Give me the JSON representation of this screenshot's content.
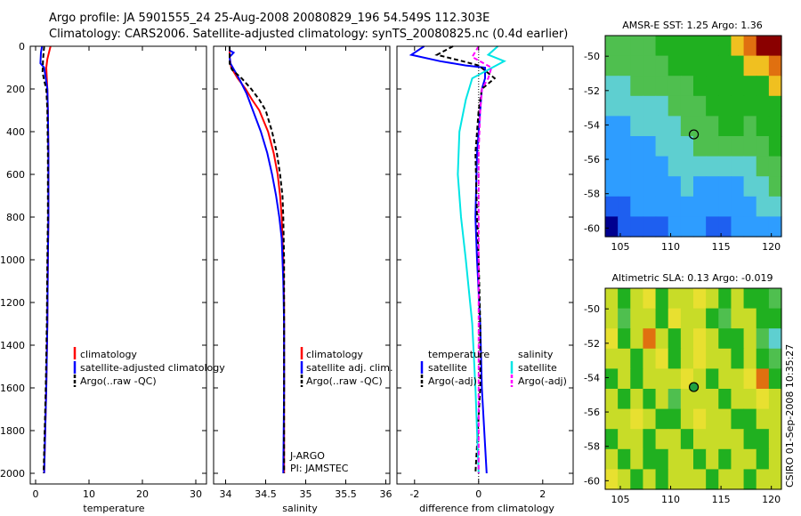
{
  "figure": {
    "title_line1": "Argo profile: JA 5901555_24 25-Aug-2008 20080829_196 54.549S 112.303E",
    "title_line2": "Climatology: CARS2006. Satellite-adjusted climatology: synTS_20080825.nc (0.4d earlier)",
    "credit": "CSIRO 01-Sep-2008 10:35:27",
    "colors": {
      "climatology": "#ff0000",
      "satellite": "#0000ff",
      "argo": "#000000",
      "salinity": "#00e5e5",
      "salinity_adj": "#ff00ff"
    }
  },
  "chart_data": [
    {
      "type": "line",
      "id": "temperature",
      "xlabel": "temperature",
      "ylabel": "",
      "xlim": [
        -1,
        32
      ],
      "ylim": [
        2050,
        0
      ],
      "xticks": [
        "0",
        "10",
        "20",
        "30"
      ],
      "yticks": [
        "0",
        "200",
        "400",
        "600",
        "800",
        "1000",
        "1200",
        "1400",
        "1600",
        "1800",
        "2000"
      ],
      "legend": [
        "climatology",
        "satellite-adjusted climatology",
        "Argo(..raw -QC)"
      ],
      "series": [
        {
          "name": "climatology",
          "color": "#ff0000",
          "dash": "",
          "points": [
            [
              2.8,
              0
            ],
            [
              2.6,
              20
            ],
            [
              2.2,
              60
            ],
            [
              2.0,
              100
            ],
            [
              2.1,
              150
            ],
            [
              2.2,
              200
            ],
            [
              2.3,
              300
            ],
            [
              2.4,
              500
            ],
            [
              2.4,
              800
            ],
            [
              2.3,
              1000
            ],
            [
              2.2,
              1300
            ],
            [
              2.0,
              1600
            ],
            [
              1.7,
              1900
            ],
            [
              1.6,
              2000
            ]
          ]
        },
        {
          "name": "satellite-adjusted climatology",
          "color": "#0000ff",
          "dash": "",
          "points": [
            [
              1.2,
              0
            ],
            [
              1.0,
              30
            ],
            [
              0.9,
              80
            ],
            [
              1.6,
              100
            ],
            [
              1.9,
              150
            ],
            [
              2.2,
              200
            ],
            [
              2.3,
              300
            ],
            [
              2.4,
              500
            ],
            [
              2.4,
              800
            ],
            [
              2.3,
              1000
            ],
            [
              2.2,
              1300
            ],
            [
              2.0,
              1600
            ],
            [
              1.7,
              1900
            ],
            [
              1.6,
              2000
            ]
          ]
        },
        {
          "name": "Argo(..raw -QC)",
          "color": "#000000",
          "dash": "5,3",
          "points": [
            [
              1.6,
              0
            ],
            [
              1.4,
              60
            ],
            [
              1.3,
              120
            ],
            [
              1.6,
              160
            ],
            [
              2.0,
              200
            ],
            [
              2.2,
              300
            ],
            [
              2.3,
              500
            ],
            [
              2.3,
              800
            ],
            [
              2.2,
              1000
            ],
            [
              2.1,
              1300
            ],
            [
              1.9,
              1600
            ],
            [
              1.6,
              1900
            ],
            [
              1.5,
              2000
            ]
          ]
        }
      ]
    },
    {
      "type": "line",
      "id": "salinity",
      "xlabel": "salinity",
      "ylabel": "",
      "xlim": [
        33.85,
        36.05
      ],
      "ylim": [
        2050,
        0
      ],
      "xticks": [
        "34",
        "34.5",
        "35",
        "35.5",
        "36"
      ],
      "legend": [
        "climatology",
        "satellite adj. clim.",
        "Argo(..raw -QC)"
      ],
      "annotation": [
        "J-ARGO",
        "PI: JAMSTEC"
      ],
      "series": [
        {
          "name": "climatology",
          "color": "#ff0000",
          "dash": "",
          "points": [
            [
              34.05,
              0
            ],
            [
              34.05,
              50
            ],
            [
              34.07,
              100
            ],
            [
              34.15,
              150
            ],
            [
              34.25,
              200
            ],
            [
              34.33,
              250
            ],
            [
              34.42,
              300
            ],
            [
              34.53,
              400
            ],
            [
              34.6,
              500
            ],
            [
              34.65,
              600
            ],
            [
              34.68,
              700
            ],
            [
              34.7,
              800
            ],
            [
              34.72,
              1000
            ],
            [
              34.73,
              1200
            ],
            [
              34.73,
              1500
            ],
            [
              34.73,
              1800
            ],
            [
              34.73,
              2000
            ]
          ]
        },
        {
          "name": "satellite adj. clim.",
          "color": "#0000ff",
          "dash": "",
          "points": [
            [
              34.05,
              0
            ],
            [
              34.05,
              20
            ],
            [
              34.1,
              30
            ],
            [
              34.05,
              50
            ],
            [
              34.06,
              80
            ],
            [
              34.12,
              120
            ],
            [
              34.18,
              160
            ],
            [
              34.26,
              220
            ],
            [
              34.34,
              300
            ],
            [
              34.44,
              400
            ],
            [
              34.52,
              500
            ],
            [
              34.58,
              600
            ],
            [
              34.63,
              700
            ],
            [
              34.67,
              800
            ],
            [
              34.7,
              900
            ],
            [
              34.72,
              1100
            ],
            [
              34.73,
              1300
            ],
            [
              34.73,
              1600
            ],
            [
              34.72,
              2000
            ]
          ]
        },
        {
          "name": "Argo(..raw -QC)",
          "color": "#000000",
          "dash": "5,3",
          "points": [
            [
              34.05,
              0
            ],
            [
              34.05,
              80
            ],
            [
              34.08,
              110
            ],
            [
              34.2,
              150
            ],
            [
              34.32,
              200
            ],
            [
              34.42,
              250
            ],
            [
              34.5,
              300
            ],
            [
              34.58,
              400
            ],
            [
              34.64,
              500
            ],
            [
              34.68,
              600
            ],
            [
              34.71,
              700
            ],
            [
              34.72,
              800
            ],
            [
              34.73,
              1000
            ],
            [
              34.73,
              1500
            ],
            [
              34.73,
              2000
            ]
          ]
        }
      ]
    },
    {
      "type": "line",
      "id": "difference",
      "xlabel": "difference from climatology",
      "ylabel": "",
      "xlim": [
        -2.55,
        2.95
      ],
      "ylim": [
        2050,
        0
      ],
      "xticks": [
        "-2",
        "0",
        "2"
      ],
      "legend_left_header": "temperature",
      "legend_right_header": "salinity",
      "legend": [
        "satellite",
        "Argo(-adj)",
        "satellite",
        "Argo(-adj)"
      ],
      "series": [
        {
          "name": "satellite (temperature)",
          "color": "#0000ff",
          "dash": "",
          "points": [
            [
              -1.7,
              0
            ],
            [
              -2.1,
              40
            ],
            [
              -1.2,
              70
            ],
            [
              -0.4,
              90
            ],
            [
              0.2,
              100
            ],
            [
              0.2,
              150
            ],
            [
              0.1,
              200
            ],
            [
              0.05,
              300
            ],
            [
              -0.05,
              500
            ],
            [
              -0.1,
              800
            ],
            [
              -0.05,
              1000
            ],
            [
              0.05,
              1300
            ],
            [
              0.1,
              1600
            ],
            [
              0.25,
              2000
            ]
          ]
        },
        {
          "name": "Argo(-adj) (temperature)",
          "color": "#000000",
          "dash": "5,3",
          "points": [
            [
              -0.8,
              0
            ],
            [
              -1.3,
              40
            ],
            [
              -0.5,
              70
            ],
            [
              0.0,
              90
            ],
            [
              0.5,
              150
            ],
            [
              0.1,
              200
            ],
            [
              0.0,
              300
            ],
            [
              -0.1,
              500
            ],
            [
              -0.05,
              800
            ],
            [
              0.0,
              1000
            ],
            [
              0.05,
              1300
            ],
            [
              0.05,
              1600
            ],
            [
              -0.1,
              2000
            ]
          ]
        },
        {
          "name": "satellite (salinity)",
          "color": "#00e5e5",
          "dash": "",
          "points": [
            [
              0.6,
              0
            ],
            [
              0.3,
              40
            ],
            [
              0.8,
              70
            ],
            [
              -0.2,
              150
            ],
            [
              -0.4,
              250
            ],
            [
              -0.6,
              400
            ],
            [
              -0.65,
              600
            ],
            [
              -0.55,
              800
            ],
            [
              -0.4,
              1000
            ],
            [
              -0.2,
              1300
            ],
            [
              -0.1,
              1600
            ],
            [
              0.0,
              2000
            ]
          ]
        },
        {
          "name": "Argo(-adj) (salinity)",
          "color": "#ff00ff",
          "dash": "5,3",
          "points": [
            [
              0.0,
              0
            ],
            [
              -0.2,
              50
            ],
            [
              0.4,
              100
            ],
            [
              0.3,
              150
            ],
            [
              0.1,
              200
            ],
            [
              0.05,
              300
            ],
            [
              0.0,
              500
            ],
            [
              0.0,
              800
            ],
            [
              0.0,
              1200
            ],
            [
              0.0,
              1600
            ],
            [
              0.0,
              2000
            ]
          ]
        }
      ]
    },
    {
      "type": "heatmap",
      "id": "sst_map",
      "title": "AMSR-E SST: 1.25 Argo: 1.36",
      "xlim": [
        103.5,
        121
      ],
      "ylim": [
        -60.5,
        -48.8
      ],
      "xticks": [
        "105",
        "110",
        "115",
        "120"
      ],
      "yticks": [
        "-50",
        "-52",
        "-54",
        "-56",
        "-58",
        "-60"
      ],
      "marker": [
        112.3,
        -54.55
      ],
      "palette": [
        "#00008f",
        "#1e5ff0",
        "#2e9dff",
        "#5ecfd0",
        "#4fbf4f",
        "#20b020",
        "#f0c020",
        "#e07010",
        "#8a0000"
      ],
      "grid": [
        [
          4,
          4,
          4,
          4,
          5,
          5,
          5,
          5,
          5,
          5,
          6,
          7,
          8,
          8
        ],
        [
          4,
          4,
          4,
          4,
          4,
          5,
          5,
          5,
          5,
          5,
          5,
          6,
          6,
          7
        ],
        [
          3,
          3,
          4,
          4,
          4,
          4,
          4,
          5,
          5,
          5,
          5,
          5,
          5,
          6
        ],
        [
          3,
          3,
          3,
          3,
          3,
          4,
          4,
          4,
          5,
          5,
          5,
          5,
          5,
          5
        ],
        [
          2,
          2,
          3,
          3,
          3,
          3,
          4,
          4,
          4,
          5,
          5,
          4,
          5,
          5
        ],
        [
          2,
          2,
          2,
          2,
          3,
          3,
          3,
          4,
          4,
          4,
          4,
          4,
          4,
          5
        ],
        [
          2,
          2,
          2,
          2,
          2,
          3,
          3,
          3,
          3,
          3,
          3,
          3,
          4,
          4
        ],
        [
          2,
          2,
          2,
          2,
          2,
          2,
          3,
          2,
          2,
          2,
          2,
          3,
          3,
          4
        ],
        [
          1,
          1,
          2,
          2,
          2,
          2,
          2,
          2,
          2,
          2,
          2,
          2,
          3,
          3
        ],
        [
          0,
          1,
          1,
          1,
          1,
          2,
          2,
          2,
          1,
          1,
          2,
          2,
          2,
          2
        ]
      ]
    },
    {
      "type": "heatmap",
      "id": "sla_map",
      "title": "Altimetric SLA: 0.13 Argo: -0.019",
      "xlim": [
        103.5,
        121
      ],
      "ylim": [
        -60.5,
        -48.8
      ],
      "xticks": [
        "105",
        "110",
        "115",
        "120"
      ],
      "yticks": [
        "-50",
        "-52",
        "-54",
        "-56",
        "-58",
        "-60"
      ],
      "marker": [
        112.3,
        -54.55
      ],
      "palette": [
        "#00008f",
        "#1e5ff0",
        "#2e9dff",
        "#5ecfd0",
        "#4fbf4f",
        "#20b020",
        "#c8dc28",
        "#e8e030",
        "#e07010",
        "#8a0000"
      ],
      "grid": [
        [
          6,
          5,
          6,
          7,
          5,
          6,
          6,
          7,
          6,
          5,
          6,
          5,
          5,
          4
        ],
        [
          6,
          4,
          6,
          6,
          5,
          7,
          6,
          6,
          5,
          4,
          6,
          6,
          5,
          5
        ],
        [
          7,
          5,
          6,
          8,
          6,
          5,
          6,
          7,
          6,
          5,
          5,
          6,
          4,
          3
        ],
        [
          6,
          6,
          5,
          6,
          7,
          5,
          6,
          7,
          6,
          6,
          5,
          6,
          5,
          4
        ],
        [
          5,
          6,
          5,
          6,
          6,
          6,
          7,
          6,
          5,
          6,
          6,
          7,
          8,
          5
        ],
        [
          6,
          5,
          6,
          5,
          6,
          4,
          6,
          6,
          6,
          5,
          6,
          6,
          7,
          6
        ],
        [
          6,
          6,
          7,
          6,
          5,
          5,
          6,
          7,
          6,
          6,
          5,
          5,
          6,
          6
        ],
        [
          5,
          6,
          6,
          5,
          6,
          6,
          5,
          6,
          6,
          6,
          6,
          5,
          5,
          6
        ],
        [
          6,
          5,
          6,
          5,
          5,
          6,
          6,
          5,
          6,
          5,
          6,
          6,
          5,
          6
        ],
        [
          7,
          6,
          5,
          6,
          5,
          6,
          6,
          6,
          5,
          6,
          6,
          5,
          6,
          6
        ]
      ]
    }
  ]
}
